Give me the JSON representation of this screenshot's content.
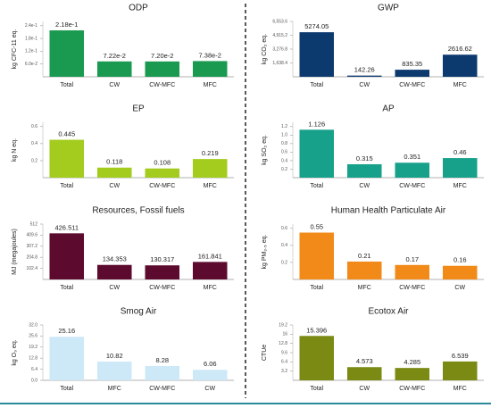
{
  "chart_data": [
    {
      "type": "bar",
      "title": "ODP",
      "y_label": "kg CFC-11 eq.",
      "categories": [
        "Total",
        "CW",
        "CW-MFC",
        "MFC"
      ],
      "values": [
        0.218,
        0.0722,
        0.072,
        0.0738
      ],
      "value_labels": [
        "2.18e-1",
        "7.22e-2",
        "7.20e-2",
        "7.38e-2"
      ],
      "color": "#1a9a50",
      "ylim": [
        0,
        0.26
      ],
      "yticks": [
        {
          "value": 0.06,
          "label": "6.0e-2"
        },
        {
          "value": 0.12,
          "label": "1.2e-1"
        },
        {
          "value": 0.18,
          "label": "1.8e-1"
        },
        {
          "value": 0.24,
          "label": "2.4e-1"
        }
      ]
    },
    {
      "type": "bar",
      "title": "GWP",
      "y_label": "kg CO₂ eq.",
      "categories": [
        "Total",
        "CW",
        "CW-MFC",
        "MFC"
      ],
      "values": [
        5274.05,
        142.26,
        835.35,
        2616.62
      ],
      "color": "#0d3a6e",
      "ylim": [
        0,
        6553.6
      ],
      "yticks": [
        {
          "value": 1638.4,
          "label": "1,638.4"
        },
        {
          "value": 3276.8,
          "label": "3,276.8"
        },
        {
          "value": 4915.2,
          "label": "4,915.2"
        },
        {
          "value": 6553.6,
          "label": "6,553.6"
        }
      ]
    },
    {
      "type": "bar",
      "title": "EP",
      "y_label": "kg N eq.",
      "categories": [
        "Total",
        "CW",
        "CW-MFC",
        "MFC"
      ],
      "values": [
        0.445,
        0.118,
        0.108,
        0.219
      ],
      "color": "#a4cc1e",
      "ylim": [
        0,
        0.65
      ],
      "yticks": [
        0.2,
        0.4,
        0.6
      ]
    },
    {
      "type": "bar",
      "title": "AP",
      "y_label": "kg SO₂ eq.",
      "categories": [
        "Total",
        "CW",
        "CW-MFC",
        "MFC"
      ],
      "values": [
        1.126,
        0.315,
        0.351,
        0.46
      ],
      "color": "#17a08a",
      "ylim": [
        0,
        1.3
      ],
      "yticks": [
        0.2,
        0.4,
        0.6,
        0.8,
        {
          "value": 1,
          "label": "1.0"
        },
        1.2
      ]
    },
    {
      "type": "bar",
      "title": "Resources, Fossil fuels",
      "y_label": "MJ (megajoules)",
      "categories": [
        "Total",
        "CW",
        "CW-MFC",
        "MFC"
      ],
      "values": [
        426.511,
        134.353,
        130.317,
        161.841
      ],
      "color": "#5c0a2e",
      "ylim": [
        0,
        512
      ],
      "yticks": [
        102.4,
        204.8,
        307.2,
        409.6,
        512
      ]
    },
    {
      "type": "bar",
      "title": "Human Health Particulate Air",
      "y_label": "kg PM₂.₅ eq.",
      "categories": [
        "Total",
        "MFC",
        "CW-MFC",
        "CW"
      ],
      "values": [
        0.55,
        0.21,
        0.17,
        0.16
      ],
      "color": "#f28a1a",
      "ylim": [
        0,
        0.65
      ],
      "yticks": [
        0.2,
        0.4,
        0.6
      ]
    },
    {
      "type": "bar",
      "title": "Smog Air",
      "y_label": "kg O₃ eq.",
      "categories": [
        "Total",
        "MFC",
        "CW-MFC",
        "CW"
      ],
      "values": [
        25.16,
        10.82,
        8.28,
        6.06
      ],
      "color": "#cde9f7",
      "ylim": [
        0,
        32
      ],
      "yticks": [
        {
          "value": 0,
          "label": "0.0"
        },
        6.4,
        12.8,
        19.2,
        25.6,
        {
          "value": 32,
          "label": "32.0"
        }
      ]
    },
    {
      "type": "bar",
      "title": "Ecotox Air",
      "y_label": "CTUe",
      "categories": [
        "Total",
        "CW",
        "CW-MFC",
        "MFC"
      ],
      "values": [
        15.396,
        4.573,
        4.285,
        6.539
      ],
      "color": "#7a8a12",
      "ylim": [
        0,
        19.2
      ],
      "yticks": [
        3.2,
        6.4,
        9.6,
        12.8,
        16,
        19.2
      ]
    }
  ]
}
